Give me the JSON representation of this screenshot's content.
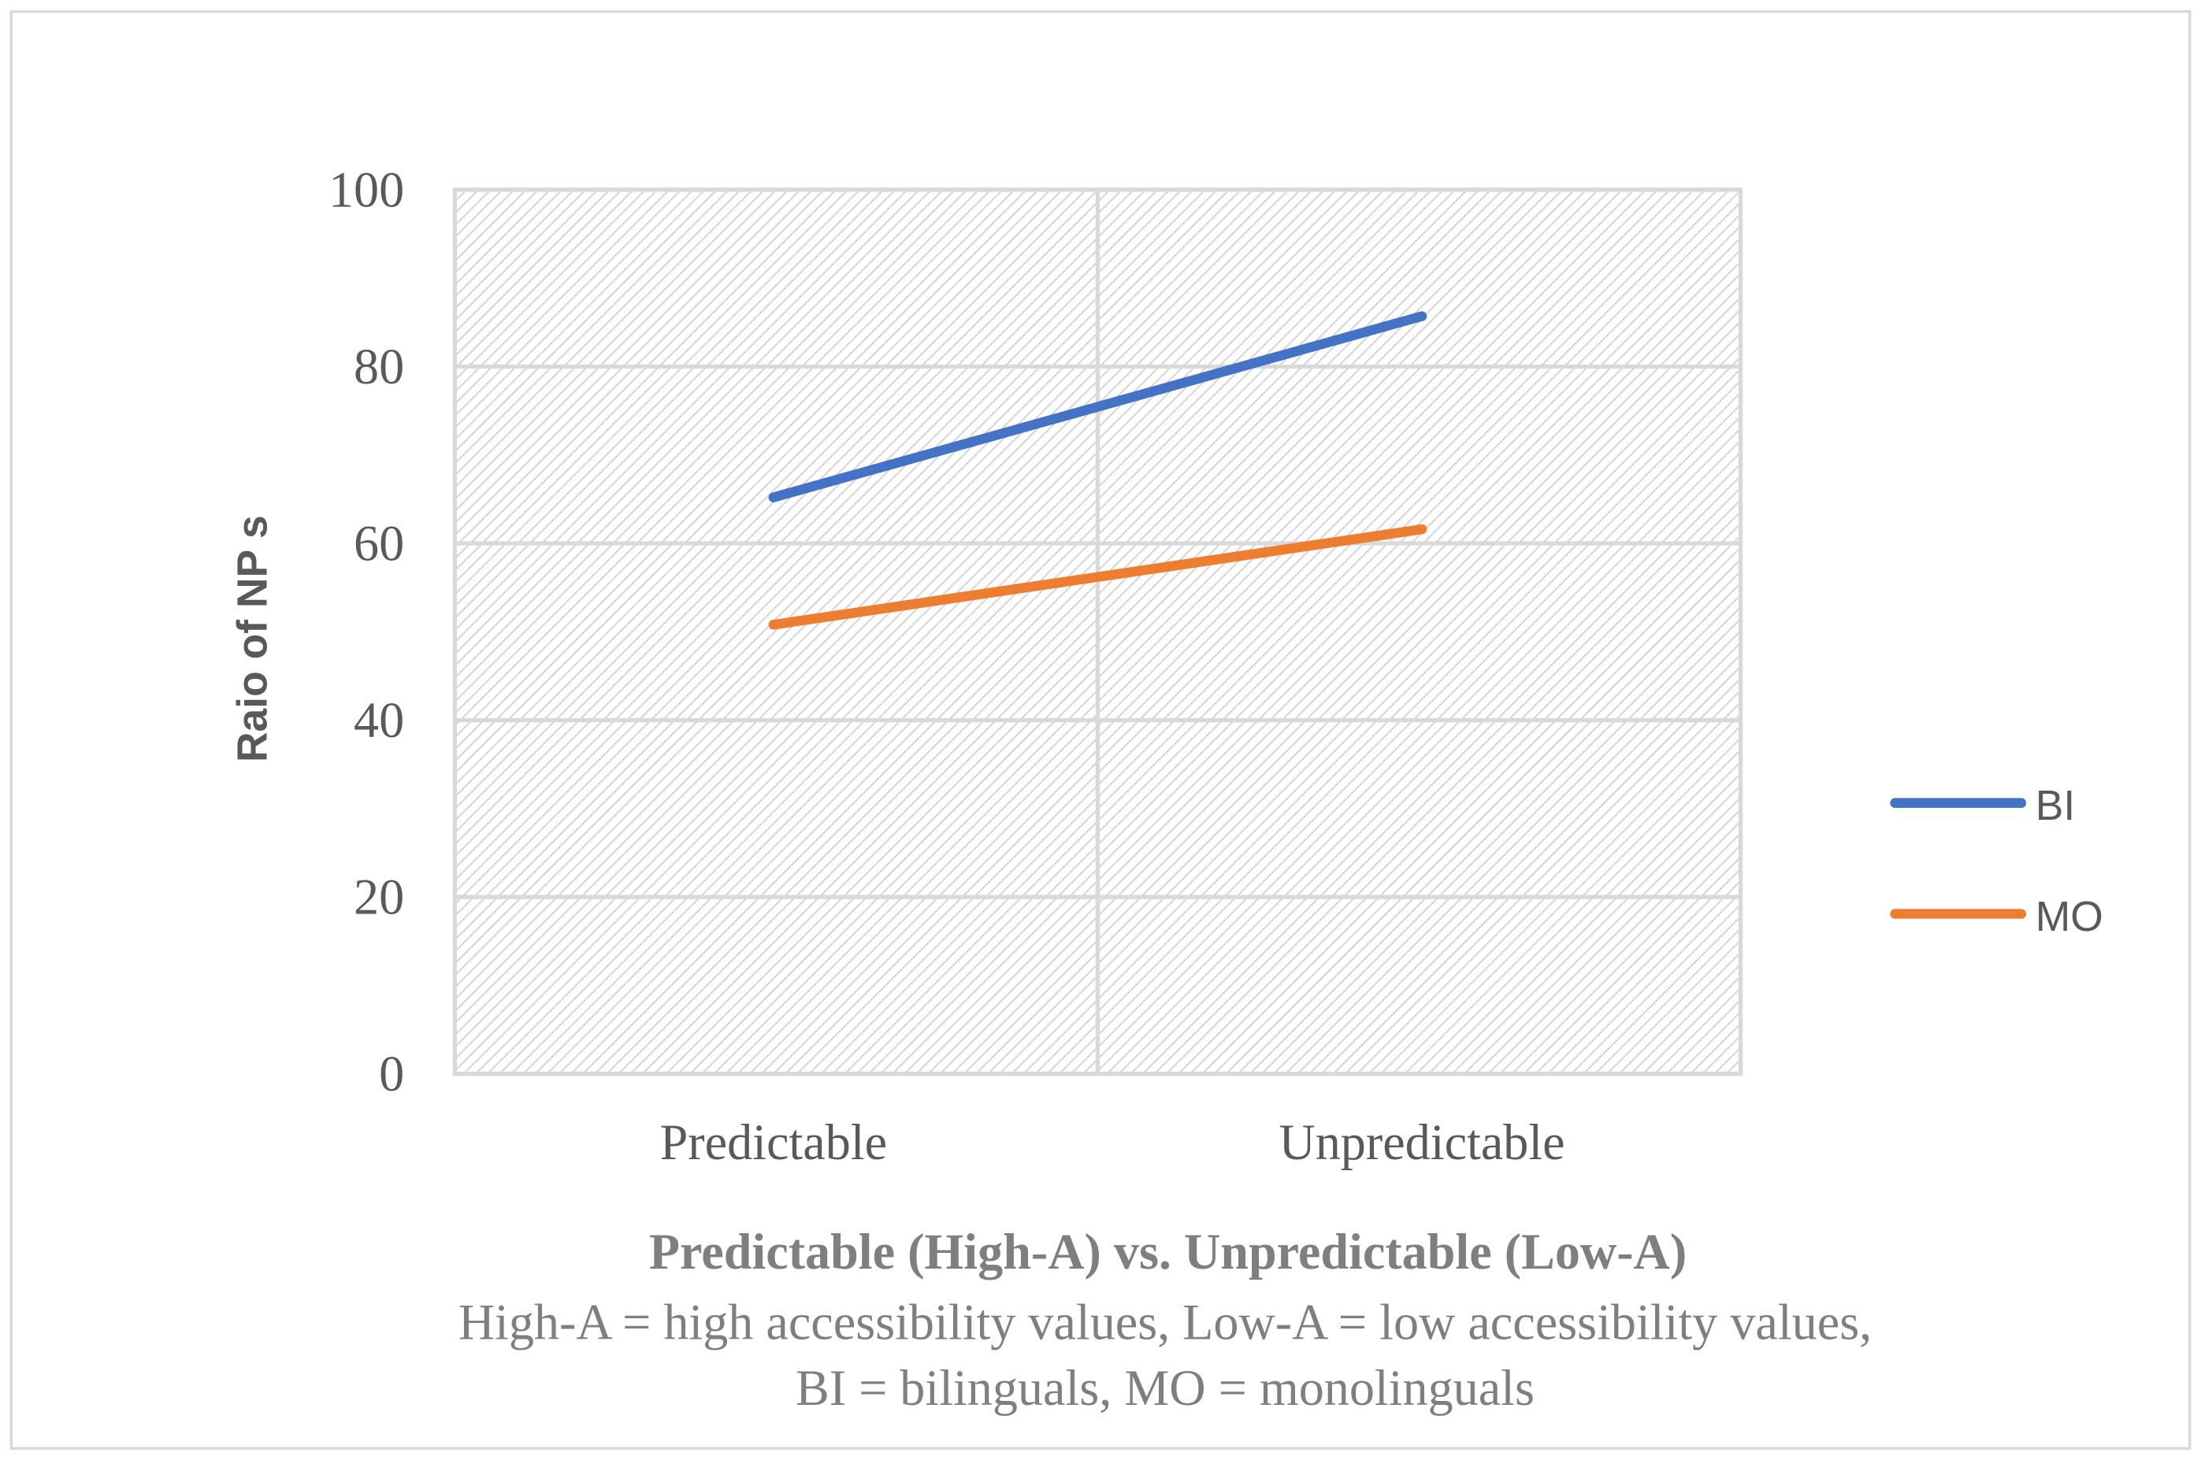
{
  "chart_data": {
    "type": "line",
    "categories": [
      "Predictable",
      "Unpredictable"
    ],
    "series": [
      {
        "name": "BI",
        "values": [
          65.2,
          85.7
        ],
        "color": "#4472C4"
      },
      {
        "name": "MO",
        "values": [
          50.8,
          61.6
        ],
        "color": "#ED7D31"
      }
    ],
    "ylabel": "Raio of NP s",
    "xlabel": "Predictable (High-A)  vs. Unpredictable (Low-A)",
    "caption_lines": [
      "High-A = high accessibility values, Low-A = low accessibility values,",
      "BI = bilinguals, MO = monolinguals"
    ],
    "ylim": [
      0,
      100
    ],
    "yticks": [
      "0",
      "20",
      "40",
      "60",
      "80",
      "100"
    ],
    "grid": true,
    "legend_position": "right"
  }
}
